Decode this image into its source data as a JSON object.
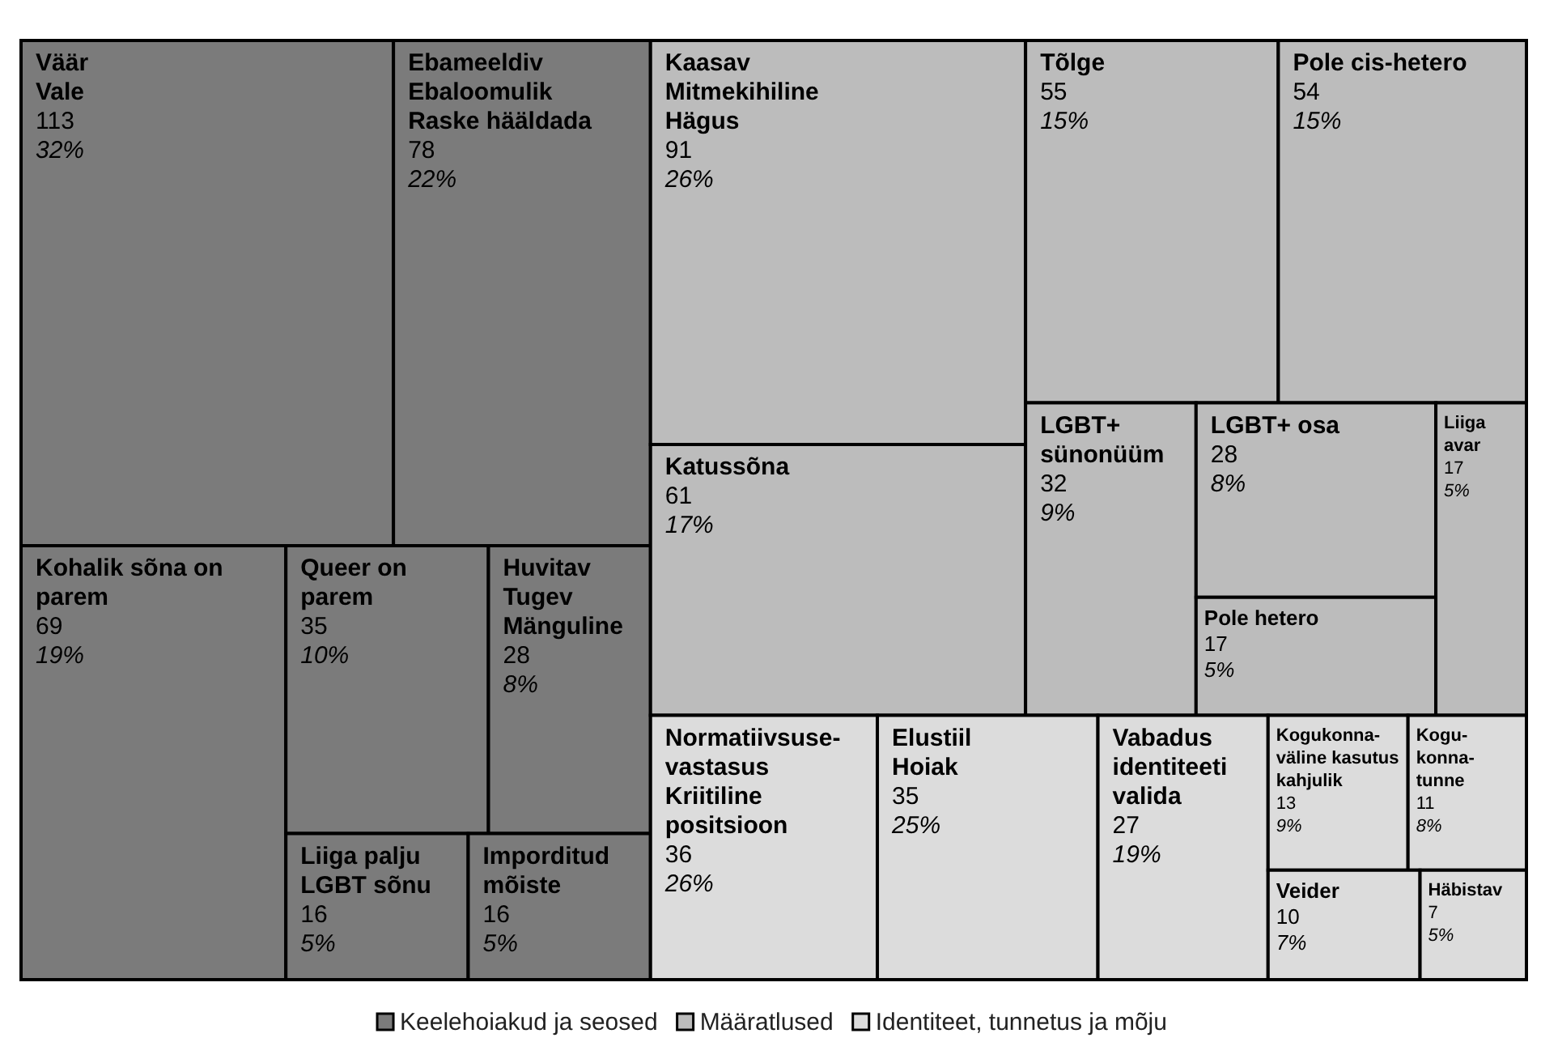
{
  "chart_data": {
    "type": "other",
    "legend": "bottom",
    "data_labels": true,
    "categories": [
      "Väär\nVale",
      "Ebameeldiv\nEbaloomulik\nRaske hääldada",
      "Kohalik sõna on parem",
      "Queer on parem",
      "Huvitav\nTugev\nMänguline",
      "Liiga palju LGBT sõnu",
      "Imporditud mõiste",
      "Kaasav\nMitmekihiline\nHägus",
      "Katussõna",
      "Tõlge",
      "Pole cis-hetero",
      "LGBT+ sünonüüm",
      "LGBT+ osa",
      "Pole hetero",
      "Liiga avar",
      "Normatiivsuse-vastasus\nKriitiline positsioon",
      "Elustiil\nHoiak",
      "Vabadus identiteeti valida",
      "Kogukonna-väline kasutus kahjulik",
      "Kogu-konna-tunne",
      "Veider",
      "Häbistav"
    ],
    "series": [
      {
        "name": "Keelehoiakud ja seosed",
        "color": "#7b7b7b",
        "values": [
          113,
          78,
          69,
          35,
          28,
          16,
          16,
          null,
          null,
          null,
          null,
          null,
          null,
          null,
          null,
          null,
          null,
          null,
          null,
          null,
          null,
          null
        ]
      },
      {
        "name": "Määratlused",
        "color": "#bcbcbc",
        "values": [
          null,
          null,
          null,
          null,
          null,
          null,
          null,
          91,
          61,
          55,
          54,
          32,
          28,
          17,
          17,
          null,
          null,
          null,
          null,
          null,
          null,
          null
        ]
      },
      {
        "name": "Identiteet, tunnetus ja mõju",
        "color": "#dcdcdc",
        "values": [
          null,
          null,
          null,
          null,
          null,
          null,
          null,
          null,
          null,
          null,
          null,
          null,
          null,
          null,
          null,
          36,
          35,
          27,
          13,
          11,
          10,
          7
        ]
      }
    ],
    "annotations": [
      {
        "text": "32%",
        "x": "Väär\nVale"
      },
      {
        "text": "22%",
        "x": "Ebameeldiv\nEbaloomulik\nRaske hääldada"
      },
      {
        "text": "19%",
        "x": "Kohalik sõna on parem"
      },
      {
        "text": "10%",
        "x": "Queer on parem"
      },
      {
        "text": "8%",
        "x": "Huvitav\nTugev\nMänguline"
      },
      {
        "text": "5%",
        "x": "Liiga palju LGBT sõnu"
      },
      {
        "text": "5%",
        "x": "Imporditud mõiste"
      },
      {
        "text": "26%",
        "x": "Kaasav\nMitmekihiline\nHägus"
      },
      {
        "text": "17%",
        "x": "Katussõna"
      },
      {
        "text": "15%",
        "x": "Tõlge"
      },
      {
        "text": "15%",
        "x": "Pole cis-hetero"
      },
      {
        "text": "9%",
        "x": "LGBT+ sünonüüm"
      },
      {
        "text": "8%",
        "x": "LGBT+ osa"
      },
      {
        "text": "5%",
        "x": "Pole hetero"
      },
      {
        "text": "5%",
        "x": "Liiga avar"
      },
      {
        "text": "26%",
        "x": "Normatiivsuse-vastasus\nKriitiline positsioon"
      },
      {
        "text": "25%",
        "x": "Elustiil\nHoiak"
      },
      {
        "text": "19%",
        "x": "Vabadus identiteeti valida"
      },
      {
        "text": "9%",
        "x": "Kogukonna-väline kasutus kahjulik"
      },
      {
        "text": "8%",
        "x": "Kogu-konna-tunne"
      },
      {
        "text": "7%",
        "x": "Veider"
      },
      {
        "text": "5%",
        "x": "Häbistav"
      }
    ]
  }
}
